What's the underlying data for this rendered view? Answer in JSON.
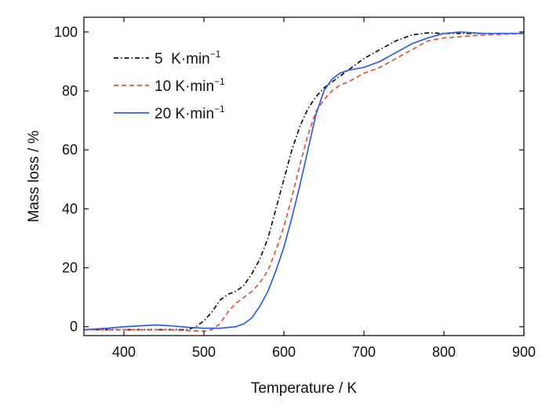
{
  "chart_data": {
    "type": "line",
    "xlabel": "Temperature / K",
    "ylabel": "Mass loss / %",
    "xlim": [
      350,
      900
    ],
    "ylim": [
      -3,
      105
    ],
    "x_ticks": [
      400,
      500,
      600,
      700,
      800,
      900
    ],
    "y_ticks": [
      0,
      20,
      40,
      60,
      80,
      100
    ],
    "grid": false,
    "legend_position": "top-left",
    "series": [
      {
        "name": "5  K·min",
        "name_superscript": "−1",
        "color": "#111111",
        "style": "dash-dot",
        "x": [
          350,
          400,
          450,
          480,
          490,
          500,
          510,
          520,
          530,
          540,
          550,
          560,
          570,
          580,
          590,
          600,
          610,
          620,
          630,
          640,
          650,
          660,
          670,
          680,
          700,
          720,
          740,
          760,
          780,
          800,
          850,
          900
        ],
        "y": [
          -1,
          -1,
          -1,
          -1,
          0,
          2,
          5,
          9,
          11,
          12,
          14,
          18,
          23,
          30,
          40,
          50,
          60,
          68,
          74,
          78,
          81,
          83,
          85,
          87,
          91,
          94,
          97,
          99,
          99.7,
          99.5,
          99.5,
          99.5
        ]
      },
      {
        "name": "10 K·min",
        "name_superscript": "−1",
        "color": "#e8503a",
        "style": "dashed",
        "x": [
          350,
          400,
          450,
          500,
          510,
          520,
          530,
          540,
          550,
          560,
          570,
          580,
          590,
          600,
          610,
          620,
          630,
          640,
          650,
          660,
          670,
          680,
          700,
          720,
          740,
          760,
          780,
          800,
          850,
          900
        ],
        "y": [
          -1,
          -1,
          -1,
          -1.5,
          -1,
          1,
          5,
          8,
          10,
          12,
          15,
          19,
          26,
          34,
          44,
          55,
          65,
          73,
          77,
          80,
          82,
          83,
          86,
          88,
          91,
          94,
          97,
          98,
          99,
          99.5
        ]
      },
      {
        "name": "20 K·min",
        "name_superscript": "−1",
        "color": "#2f5fe0",
        "style": "solid",
        "x": [
          350,
          380,
          400,
          420,
          440,
          460,
          480,
          500,
          520,
          540,
          550,
          560,
          570,
          580,
          590,
          600,
          610,
          620,
          630,
          640,
          650,
          660,
          670,
          680,
          700,
          720,
          740,
          760,
          780,
          800,
          820,
          850,
          900
        ],
        "y": [
          -1,
          -0.5,
          0,
          0.3,
          0.6,
          0.3,
          -0.2,
          -0.5,
          -0.5,
          0,
          1,
          3,
          7,
          12,
          19,
          27,
          37,
          48,
          60,
          72,
          80,
          84,
          86,
          87,
          88,
          90,
          93,
          96,
          98,
          99.5,
          100,
          99.5,
          99.5
        ]
      }
    ]
  }
}
